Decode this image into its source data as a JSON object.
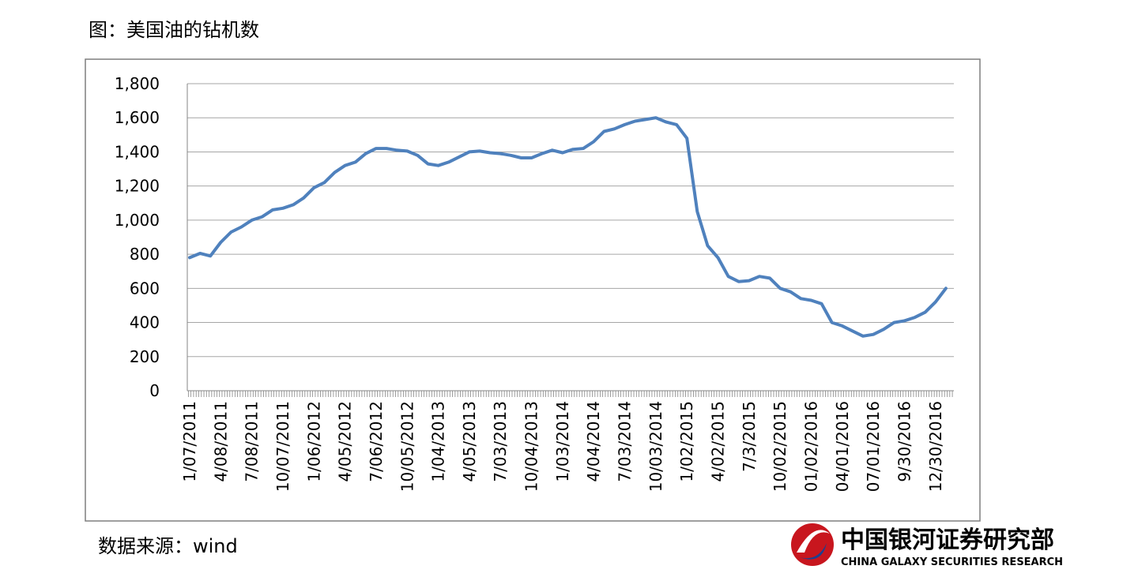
{
  "chart_data": {
    "type": "line",
    "title": "图：美国油的钻机数",
    "source": "数据来源：wind",
    "logo": {
      "name": "中国银河证券研究部",
      "subtitle": "CHINA GALAXY SECURITIES RESEARCH"
    },
    "categories": [
      "1/07/2011",
      null,
      null,
      "4/08/2011",
      null,
      null,
      "7/08/2011",
      null,
      null,
      "10/07/2011",
      null,
      null,
      "1/06/2012",
      null,
      null,
      "4/05/2012",
      null,
      null,
      "7/06/2012",
      null,
      null,
      "10/05/2012",
      null,
      null,
      "1/04/2013",
      null,
      null,
      "4/05/2013",
      null,
      null,
      "7/03/2013",
      null,
      null,
      "10/04/2013",
      null,
      null,
      "1/03/2014",
      null,
      null,
      "4/04/2014",
      null,
      null,
      "7/03/2014",
      null,
      null,
      "10/03/2014",
      null,
      null,
      "1/02/2015",
      null,
      null,
      "4/02/2015",
      null,
      null,
      "7/3/2015",
      null,
      null,
      "10/02/2015",
      null,
      null,
      "01/02/2016",
      null,
      null,
      "04/01/2016",
      null,
      null,
      "07/01/2016",
      null,
      null,
      "9/30/2016",
      null,
      null,
      "12/30/2016",
      null
    ],
    "values": [
      780,
      805,
      790,
      870,
      930,
      960,
      1000,
      1020,
      1060,
      1070,
      1090,
      1130,
      1190,
      1220,
      1280,
      1320,
      1340,
      1390,
      1420,
      1420,
      1410,
      1405,
      1380,
      1330,
      1320,
      1340,
      1370,
      1400,
      1405,
      1395,
      1390,
      1380,
      1365,
      1365,
      1390,
      1410,
      1395,
      1415,
      1420,
      1460,
      1520,
      1535,
      1560,
      1580,
      1590,
      1600,
      1575,
      1560,
      1480,
      1050,
      850,
      780,
      670,
      640,
      645,
      670,
      660,
      600,
      580,
      540,
      530,
      510,
      400,
      380,
      350,
      320,
      330,
      360,
      400,
      410,
      430,
      460,
      520,
      600
    ],
    "color": "#4f81bd",
    "ylim": [
      0,
      1800
    ],
    "yticks": [
      0,
      200,
      400,
      600,
      800,
      {
        "value": 1000,
        "label": "1,000"
      },
      {
        "value": 1200,
        "label": "1,200"
      },
      {
        "value": 1400,
        "label": "1,400"
      },
      {
        "value": 1600,
        "label": "1,600"
      },
      {
        "value": 1800,
        "label": "1,800"
      }
    ],
    "grid": true
  }
}
